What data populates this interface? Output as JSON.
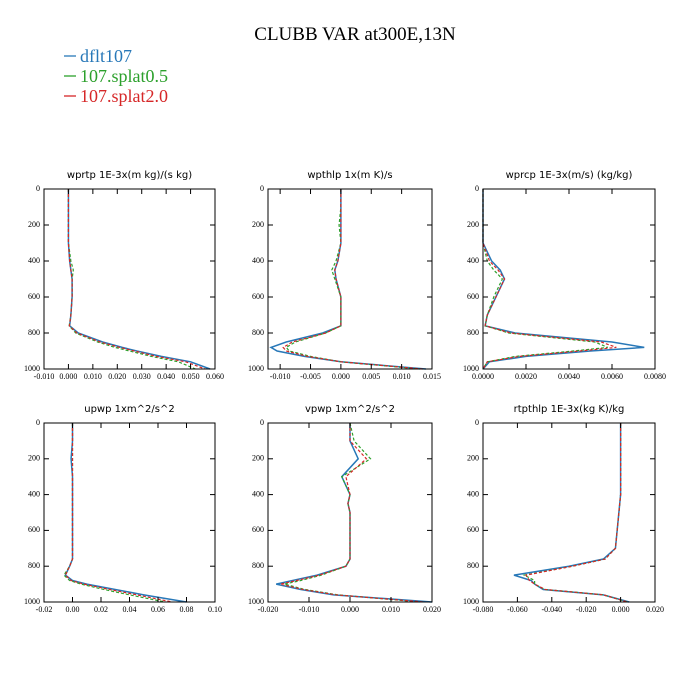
{
  "header": {
    "title": "CLUBB VAR at300E,13N"
  },
  "chart_data": [
    {
      "type": "line",
      "title": "wprtp  1E-3x(m kg)/(s kg)",
      "inverted_y": true,
      "levels": [
        0,
        100,
        200,
        300,
        400,
        450,
        500,
        600,
        700,
        760,
        800,
        850,
        880,
        900,
        930,
        960,
        1000
      ],
      "series": [
        {
          "name": "dflt107",
          "color": "#2878b8",
          "style": "solid",
          "values": [
            0,
            0,
            0,
            0,
            0.0005,
            0.001,
            0.0015,
            0.0015,
            0.001,
            0.0005,
            0.004,
            0.014,
            0.022,
            0.028,
            0.038,
            0.05,
            0.058
          ]
        },
        {
          "name": "107.splat0.5",
          "color": "#2ca02c",
          "style": "dashed",
          "values": [
            0,
            0,
            0,
            0,
            0.001,
            0.002,
            0.0015,
            0.0015,
            0.001,
            0.0003,
            0.003,
            0.012,
            0.019,
            0.025,
            0.034,
            0.045,
            0.052
          ]
        },
        {
          "name": "107.splat2.0",
          "color": "#d62728",
          "style": "dashed",
          "values": [
            0,
            0,
            0,
            0,
            0.0005,
            0.001,
            0.0015,
            0.0015,
            0.001,
            0.0004,
            0.0035,
            0.013,
            0.021,
            0.027,
            0.036,
            0.048,
            0.056
          ]
        }
      ],
      "xlim": [
        -0.01,
        0.06
      ],
      "ylim": [
        0,
        1000
      ],
      "xticks": [
        {
          "value": -0.01,
          "label": "-0.010"
        },
        {
          "value": 0,
          "label": "0.000"
        },
        {
          "value": 0.01,
          "label": "0.010"
        },
        {
          "value": 0.02,
          "label": "0.020"
        },
        {
          "value": 0.03,
          "label": "0.030"
        },
        {
          "value": 0.04,
          "label": "0.040"
        },
        {
          "value": 0.05,
          "label": "0.050"
        },
        {
          "value": 0.06,
          "label": "0.060"
        }
      ],
      "yticks": [
        0,
        200,
        400,
        600,
        800,
        1000
      ]
    },
    {
      "type": "line",
      "title": "wpthlp  1x(m K)/s",
      "inverted_y": true,
      "levels": [
        0,
        100,
        200,
        300,
        400,
        450,
        500,
        600,
        700,
        760,
        800,
        850,
        880,
        900,
        930,
        960,
        1000
      ],
      "series": [
        {
          "name": "dflt107",
          "color": "#2878b8",
          "style": "solid",
          "values": [
            0,
            0,
            0,
            0,
            -0.0005,
            -0.001,
            -0.0008,
            0,
            0,
            0,
            -0.003,
            -0.009,
            -0.0115,
            -0.0105,
            -0.006,
            0,
            0.014
          ]
        },
        {
          "name": "107.splat0.5",
          "color": "#2ca02c",
          "style": "dashed",
          "values": [
            0,
            0,
            -0.0003,
            0,
            -0.0008,
            -0.0015,
            -0.001,
            0,
            0,
            0,
            -0.0025,
            -0.0075,
            -0.009,
            -0.0085,
            -0.005,
            0,
            0.013
          ]
        },
        {
          "name": "107.splat2.0",
          "color": "#d62728",
          "style": "dashed",
          "values": [
            0,
            0,
            0,
            0,
            -0.0005,
            -0.001,
            -0.0008,
            0,
            0,
            0,
            -0.0025,
            -0.008,
            -0.0095,
            -0.009,
            -0.0055,
            0,
            0.0135
          ]
        }
      ],
      "xlim": [
        -0.012,
        0.015
      ],
      "ylim": [
        0,
        1000
      ],
      "xticks": [
        {
          "value": -0.01,
          "label": "-0.010"
        },
        {
          "value": -0.005,
          "label": "-0.005"
        },
        {
          "value": 0,
          "label": "0.000"
        },
        {
          "value": 0.005,
          "label": "0.005"
        },
        {
          "value": 0.01,
          "label": "0.010"
        },
        {
          "value": 0.015,
          "label": "0.015"
        }
      ],
      "yticks": [
        0,
        200,
        400,
        600,
        800,
        1000
      ]
    },
    {
      "type": "line",
      "title": "wprcp  1E-3x(m/s) (kg/kg)",
      "inverted_y": true,
      "levels": [
        0,
        100,
        200,
        300,
        400,
        450,
        500,
        600,
        700,
        760,
        800,
        850,
        880,
        900,
        930,
        960,
        1000
      ],
      "series": [
        {
          "name": "dflt107",
          "color": "#2878b8",
          "style": "solid",
          "values": [
            0,
            0,
            0,
            0,
            0.0004,
            0.0008,
            0.001,
            0.0006,
            0.0002,
            0.0001,
            0.0015,
            0.006,
            0.0075,
            0.005,
            0.002,
            0.0003,
            0
          ]
        },
        {
          "name": "107.splat0.5",
          "color": "#2ca02c",
          "style": "dashed",
          "values": [
            0,
            0,
            0,
            0,
            0.0002,
            0.0005,
            0.0009,
            0.0005,
            0.0002,
            0.0001,
            0.0012,
            0.0052,
            0.0058,
            0.0042,
            0.0015,
            0.0002,
            0
          ]
        },
        {
          "name": "107.splat2.0",
          "color": "#d62728",
          "style": "dashed",
          "values": [
            0,
            0,
            0,
            0,
            0.0003,
            0.0007,
            0.001,
            0.0006,
            0.0002,
            0.0001,
            0.0013,
            0.0055,
            0.0062,
            0.0045,
            0.0017,
            0.0002,
            0
          ]
        }
      ],
      "xlim": [
        0,
        0.008
      ],
      "ylim": [
        0,
        1000
      ],
      "xticks": [
        {
          "value": 0,
          "label": "0.0000"
        },
        {
          "value": 0.002,
          "label": "0.0020"
        },
        {
          "value": 0.004,
          "label": "0.0040"
        },
        {
          "value": 0.006,
          "label": "0.0060"
        },
        {
          "value": 0.008,
          "label": "0.0080"
        }
      ],
      "yticks": [
        0,
        200,
        400,
        600,
        800,
        1000
      ]
    },
    {
      "type": "line",
      "title": "upwp  1xm^2/s^2",
      "inverted_y": true,
      "levels": [
        0,
        100,
        200,
        300,
        400,
        450,
        500,
        600,
        700,
        760,
        800,
        850,
        880,
        900,
        930,
        960,
        1000
      ],
      "series": [
        {
          "name": "dflt107",
          "color": "#2878b8",
          "style": "solid",
          "values": [
            0,
            0,
            -0.001,
            0,
            0,
            0,
            0,
            0,
            0,
            0,
            -0.002,
            -0.005,
            0,
            0.01,
            0.03,
            0.05,
            0.08
          ]
        },
        {
          "name": "107.splat0.5",
          "color": "#2ca02c",
          "style": "dashed",
          "values": [
            0,
            0,
            0,
            0,
            0,
            0,
            0,
            0,
            0,
            0,
            -0.002,
            -0.006,
            -0.002,
            0.006,
            0.022,
            0.04,
            0.065
          ]
        },
        {
          "name": "107.splat2.0",
          "color": "#d62728",
          "style": "dashed",
          "values": [
            0,
            0,
            0,
            0,
            0,
            0,
            0,
            0,
            0,
            0,
            -0.002,
            -0.005,
            -0.001,
            0.008,
            0.026,
            0.045,
            0.07
          ]
        }
      ],
      "xlim": [
        -0.02,
        0.1
      ],
      "ylim": [
        0,
        1000
      ],
      "xticks": [
        {
          "value": -0.02,
          "label": "-0.02"
        },
        {
          "value": 0,
          "label": "0.00"
        },
        {
          "value": 0.02,
          "label": "0.02"
        },
        {
          "value": 0.04,
          "label": "0.04"
        },
        {
          "value": 0.06,
          "label": "0.06"
        },
        {
          "value": 0.08,
          "label": "0.08"
        },
        {
          "value": 0.1,
          "label": "0.10"
        }
      ],
      "yticks": [
        0,
        200,
        400,
        600,
        800,
        1000
      ]
    },
    {
      "type": "line",
      "title": "vpwp  1xm^2/s^2",
      "inverted_y": true,
      "levels": [
        0,
        100,
        200,
        300,
        400,
        450,
        500,
        600,
        700,
        760,
        800,
        850,
        880,
        900,
        930,
        960,
        1000
      ],
      "series": [
        {
          "name": "dflt107",
          "color": "#2878b8",
          "style": "solid",
          "values": [
            0,
            0,
            0.002,
            -0.002,
            0,
            -0.0005,
            0,
            0,
            0,
            0,
            -0.001,
            -0.008,
            -0.014,
            -0.018,
            -0.012,
            -0.004,
            0.02
          ]
        },
        {
          "name": "107.splat0.5",
          "color": "#2ca02c",
          "style": "dashed",
          "values": [
            0,
            0.001,
            0.005,
            -0.002,
            0,
            -0.0005,
            0,
            0,
            0,
            0,
            -0.001,
            -0.007,
            -0.012,
            -0.016,
            -0.011,
            -0.003,
            0.017
          ]
        },
        {
          "name": "107.splat2.0",
          "color": "#d62728",
          "style": "dashed",
          "values": [
            0,
            0,
            0.004,
            -0.001,
            0,
            -0.0005,
            0,
            0,
            0,
            0,
            -0.001,
            -0.0075,
            -0.013,
            -0.017,
            -0.0115,
            -0.0035,
            0.018
          ]
        }
      ],
      "xlim": [
        -0.02,
        0.02
      ],
      "ylim": [
        0,
        1000
      ],
      "xticks": [
        {
          "value": -0.02,
          "label": "-0.020"
        },
        {
          "value": -0.01,
          "label": "-0.010"
        },
        {
          "value": 0,
          "label": "0.000"
        },
        {
          "value": 0.01,
          "label": "0.010"
        },
        {
          "value": 0.02,
          "label": "0.020"
        }
      ],
      "yticks": [
        0,
        200,
        400,
        600,
        800,
        1000
      ]
    },
    {
      "type": "line",
      "title": "rtpthlp  1E-3x(kg K)/kg",
      "inverted_y": true,
      "levels": [
        0,
        100,
        200,
        300,
        400,
        450,
        500,
        600,
        700,
        760,
        800,
        850,
        880,
        900,
        930,
        960,
        1000
      ],
      "series": [
        {
          "name": "dflt107",
          "color": "#2878b8",
          "style": "solid",
          "values": [
            0,
            0,
            0,
            0,
            0,
            -0.0005,
            -0.001,
            -0.002,
            -0.003,
            -0.01,
            -0.03,
            -0.062,
            -0.052,
            -0.05,
            -0.045,
            -0.01,
            0.005
          ]
        },
        {
          "name": "107.splat0.5",
          "color": "#2ca02c",
          "style": "dashed",
          "values": [
            0,
            0,
            0,
            0,
            0,
            -0.0005,
            -0.001,
            -0.002,
            -0.003,
            -0.009,
            -0.028,
            -0.056,
            -0.05,
            -0.05,
            -0.044,
            -0.01,
            0.004
          ]
        },
        {
          "name": "107.splat2.0",
          "color": "#d62728",
          "style": "dashed",
          "values": [
            0,
            0,
            0,
            0,
            0,
            -0.0005,
            -0.001,
            -0.002,
            -0.003,
            -0.009,
            -0.028,
            -0.055,
            -0.053,
            -0.05,
            -0.044,
            -0.01,
            0.004
          ]
        }
      ],
      "xlim": [
        -0.08,
        0.02
      ],
      "ylim": [
        0,
        1000
      ],
      "xticks": [
        {
          "value": -0.08,
          "label": "-0.080"
        },
        {
          "value": -0.06,
          "label": "-0.060"
        },
        {
          "value": -0.04,
          "label": "-0.040"
        },
        {
          "value": -0.02,
          "label": "-0.020"
        },
        {
          "value": 0,
          "label": "0.000"
        },
        {
          "value": 0.02,
          "label": "0.020"
        }
      ],
      "yticks": [
        0,
        200,
        400,
        600,
        800,
        1000
      ]
    }
  ]
}
